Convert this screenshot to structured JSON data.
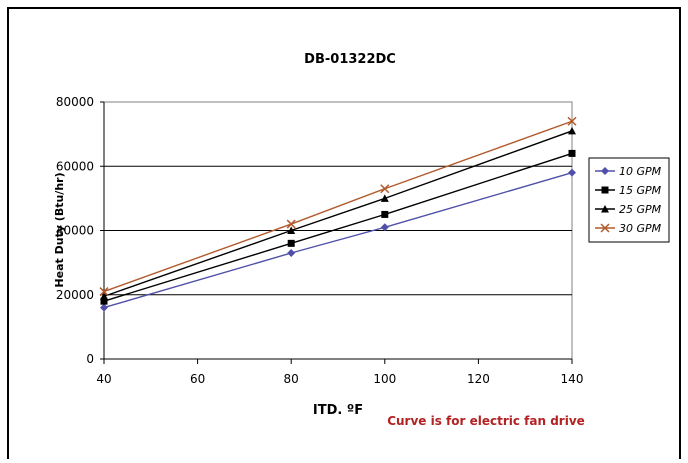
{
  "chart_data": {
    "type": "line",
    "title": "DB-01322DC",
    "xlabel": "ITD. ºF",
    "ylabel": "Heat Duty (Btu/hr)",
    "xlim": [
      40,
      140
    ],
    "ylim": [
      0,
      80000
    ],
    "x_ticks": [
      "40",
      "60",
      "80",
      "100",
      "120",
      "140"
    ],
    "y_ticks": [
      "0",
      "20000",
      "40000",
      "60000",
      "80000"
    ],
    "x": [
      40,
      80,
      100,
      140
    ],
    "series": [
      {
        "name": "10 GPM",
        "values": [
          16000,
          33000,
          41000,
          58000
        ],
        "color": "#5050a8",
        "marker": "diamond"
      },
      {
        "name": "15 GPM",
        "values": [
          18000,
          36000,
          45000,
          64000
        ],
        "color": "#000000",
        "marker": "square"
      },
      {
        "name": "25 GPM",
        "values": [
          19500,
          40000,
          50000,
          71000
        ],
        "color": "#000000",
        "marker": "triangle"
      },
      {
        "name": "30 GPM",
        "values": [
          21000,
          42000,
          53000,
          74000
        ],
        "color": "#b25a2b",
        "marker": "x"
      }
    ],
    "grid": "horizontal",
    "legend_position": "right",
    "annotation": "Curve is for electric fan drive",
    "annotation_color": "#b22222"
  }
}
